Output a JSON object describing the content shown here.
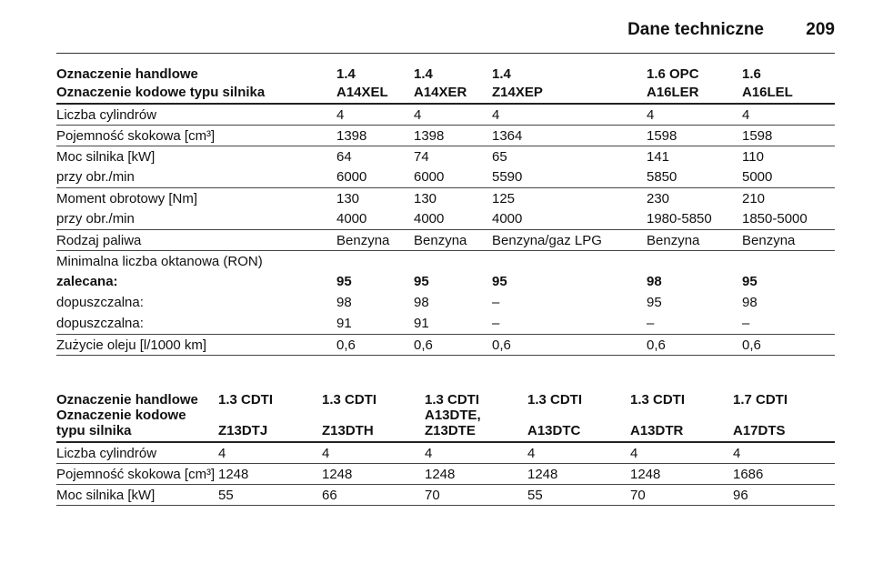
{
  "header": {
    "title": "Dane techniczne",
    "page": "209"
  },
  "tables": [
    {
      "head": [
        [
          "Oznaczenie handlowe",
          "1.4",
          "1.4",
          "1.4",
          "1.6 OPC",
          "1.6"
        ],
        [
          "Oznaczenie kodowe typu silnika",
          "A14XEL",
          "A14XER",
          "Z14XEP",
          "A16LER",
          "A16LEL"
        ]
      ],
      "groups": [
        [
          {
            "cells": [
              "Liczba cylindrów",
              "4",
              "4",
              "4",
              "4",
              "4"
            ]
          }
        ],
        [
          {
            "cells": [
              "Pojemność skokowa [cm³]",
              "1398",
              "1398",
              "1364",
              "1598",
              "1598"
            ]
          }
        ],
        [
          {
            "cells": [
              "Moc silnika [kW]",
              "64",
              "74",
              "65",
              "141",
              "110"
            ]
          },
          {
            "cells": [
              "przy obr./min",
              "6000",
              "6000",
              "5590",
              "5850",
              "5000"
            ]
          }
        ],
        [
          {
            "cells": [
              "Moment obrotowy [Nm]",
              "130",
              "130",
              "125",
              "230",
              "210"
            ]
          },
          {
            "cells": [
              "przy obr./min",
              "4000",
              "4000",
              "4000",
              "1980-5850",
              "1850-5000"
            ]
          }
        ],
        [
          {
            "cells": [
              "Rodzaj paliwa",
              "Benzyna",
              "Benzyna",
              "Benzyna/gaz LPG",
              "Benzyna",
              "Benzyna"
            ]
          }
        ],
        [
          {
            "cells": [
              "Minimalna liczba oktanowa (RON)"
            ]
          },
          {
            "cells": [
              "zalecana:",
              "95",
              "95",
              "95",
              "98",
              "95"
            ],
            "bold": true
          },
          {
            "cells": [
              "dopuszczalna:",
              "98",
              "98",
              "–",
              "95",
              "98"
            ]
          },
          {
            "cells": [
              "dopuszczalna:",
              "91",
              "91",
              "–",
              "–",
              "–"
            ]
          }
        ],
        [
          {
            "cells": [
              "Zużycie oleju [l/1000 km]",
              "0,6",
              "0,6",
              "0,6",
              "0,6",
              "0,6"
            ]
          }
        ]
      ]
    },
    {
      "head": [
        [
          "Oznaczenie handlowe",
          "1.3 CDTI",
          "1.3 CDTI",
          "1.3 CDTI",
          "1.3 CDTI",
          "1.3 CDTI",
          "1.7 CDTI"
        ],
        [
          "Oznaczenie kodowe typu silnika",
          "Z13DTJ",
          "Z13DTH",
          "A13DTE, Z13DTE",
          "A13DTC",
          "A13DTR",
          "A17DTS"
        ]
      ],
      "groups": [
        [
          {
            "cells": [
              "Liczba cylindrów",
              "4",
              "4",
              "4",
              "4",
              "4",
              "4"
            ]
          }
        ],
        [
          {
            "cells": [
              "Pojemność skokowa [cm³]",
              "1248",
              "1248",
              "1248",
              "1248",
              "1248",
              "1686"
            ]
          }
        ],
        [
          {
            "cells": [
              "Moc silnika [kW]",
              "55",
              "66",
              "70",
              "55",
              "70",
              "96"
            ]
          }
        ]
      ]
    }
  ]
}
